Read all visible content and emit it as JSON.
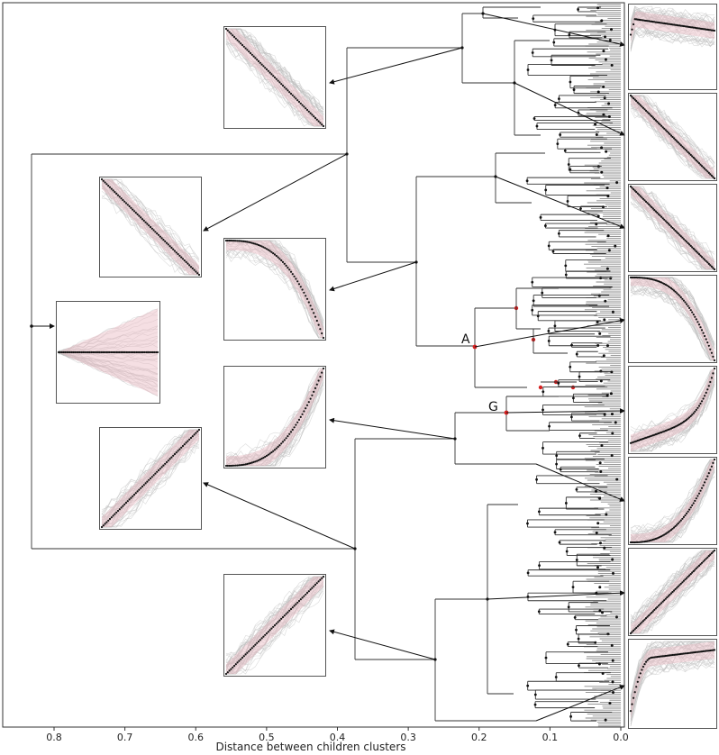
{
  "xaxis": {
    "title": "Distance between children clusters",
    "ticks": [
      "0.8",
      "0.7",
      "0.6",
      "0.5",
      "0.4",
      "0.3",
      "0.2",
      "0.1",
      "0.0"
    ],
    "range": [
      0.84,
      0.0
    ]
  },
  "labels": {
    "node_a": "A",
    "node_g": "G"
  },
  "colors": {
    "line": "#333333",
    "band": "#e8b8c0",
    "background_traces": "#bdbdbd",
    "mean_trace": "#111111",
    "highlight_node": "#d62020",
    "leaf_fill": "#555555"
  },
  "thumbnails": [
    {
      "id": "root",
      "shape": "flat",
      "desc": "fan-out flat mean"
    },
    {
      "id": "dec-upper",
      "shape": "dec"
    },
    {
      "id": "dec-mid-left",
      "shape": "dec"
    },
    {
      "id": "dec-mid",
      "shape": "dec-late"
    },
    {
      "id": "inc-convex",
      "shape": "inc-convex"
    },
    {
      "id": "inc-left",
      "shape": "inc"
    },
    {
      "id": "inc-bottom",
      "shape": "inc"
    },
    {
      "id": "right-1",
      "shape": "dec-early"
    },
    {
      "id": "right-2",
      "shape": "dec"
    },
    {
      "id": "right-3",
      "shape": "dec"
    },
    {
      "id": "right-4",
      "shape": "dec-late"
    },
    {
      "id": "right-5",
      "shape": "inc-late"
    },
    {
      "id": "right-6",
      "shape": "inc-convex"
    },
    {
      "id": "right-7",
      "shape": "inc"
    },
    {
      "id": "right-8",
      "shape": "inc-early"
    }
  ]
}
